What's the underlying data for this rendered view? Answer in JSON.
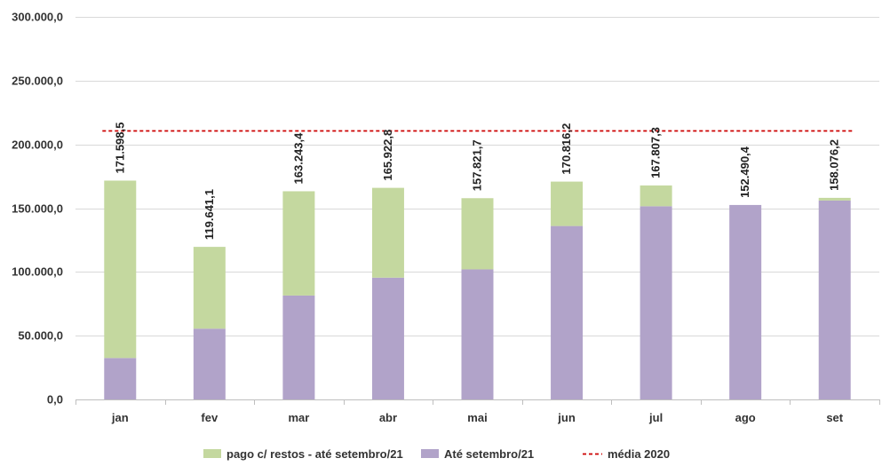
{
  "chart_data": {
    "type": "bar",
    "stacked": true,
    "categories": [
      "jan",
      "fev",
      "mar",
      "abr",
      "mai",
      "jun",
      "jul",
      "ago",
      "set"
    ],
    "series": [
      {
        "name": "Até setembro/21",
        "color": "#b1a3c9",
        "values": [
          32500,
          55500,
          81500,
          95500,
          102000,
          136000,
          151500,
          152490.4,
          156000
        ]
      },
      {
        "name": "pago c/ restos - até setembro/21",
        "color": "#c4d89f",
        "values": [
          139098.5,
          64141.1,
          81743.4,
          70422.8,
          55821.7,
          34816.2,
          16307.3,
          0,
          2076.2
        ]
      }
    ],
    "totals_labels": [
      "171.598,5",
      "119.641,1",
      "163.243,4",
      "165.922,8",
      "157.821,7",
      "170.816,2",
      "167.807,3",
      "152.490,4",
      "158.076,2"
    ],
    "reference_line": {
      "name": "média 2020",
      "value": 211000,
      "color": "#cc0000",
      "style": "dashed"
    },
    "ylim": [
      0,
      300000
    ],
    "y_ticks": [
      0,
      50000,
      100000,
      150000,
      200000,
      250000,
      300000
    ],
    "y_tick_labels": [
      "0,0",
      "50.000,0",
      "100.000,0",
      "150.000,0",
      "200.000,0",
      "250.000,0",
      "300.000,0"
    ],
    "grid": true,
    "legend_position": "bottom",
    "legend_order": [
      "pago c/ restos - até setembro/21",
      "Até setembro/21",
      "média 2020"
    ],
    "title": "",
    "xlabel": "",
    "ylabel": ""
  }
}
